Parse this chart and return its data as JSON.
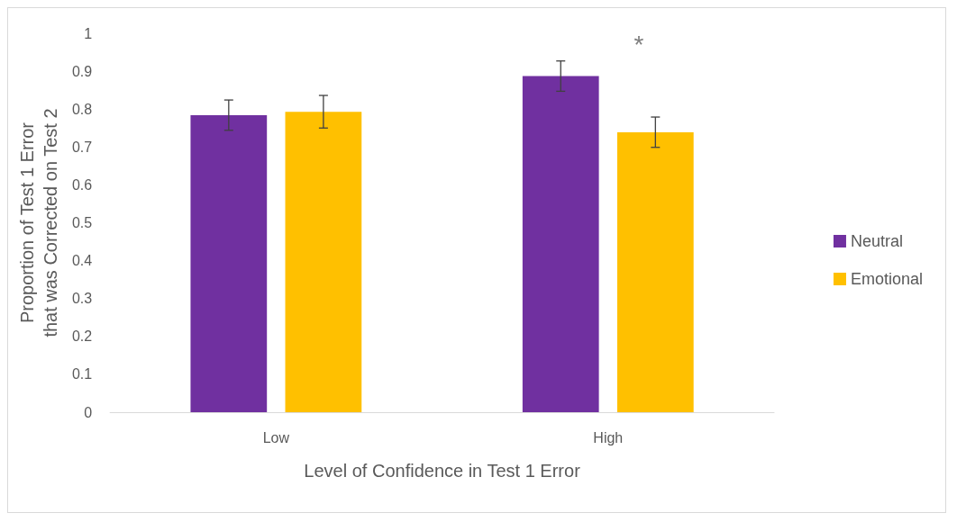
{
  "chart_data": {
    "type": "bar",
    "xlabel": "Level of Confidence in Test 1 Error",
    "ylabel": "Proportion of Test 1 Error that was Corrected on Test 2",
    "categories": [
      "Low",
      "High"
    ],
    "series": [
      {
        "name": "Neutral",
        "color": "#7030a0",
        "values": [
          0.784,
          0.887
        ],
        "errors": [
          0.04,
          0.04
        ]
      },
      {
        "name": "Emotional",
        "color": "#ffc000",
        "values": [
          0.793,
          0.739
        ],
        "errors": [
          0.043,
          0.04
        ]
      }
    ],
    "ylim": [
      0,
      1
    ],
    "yticks": [
      0,
      0.1,
      0.2,
      0.3,
      0.4,
      0.5,
      0.6,
      0.7,
      0.8,
      0.9,
      1
    ],
    "grid": false,
    "legend": "right",
    "annotations": [
      "*"
    ]
  }
}
